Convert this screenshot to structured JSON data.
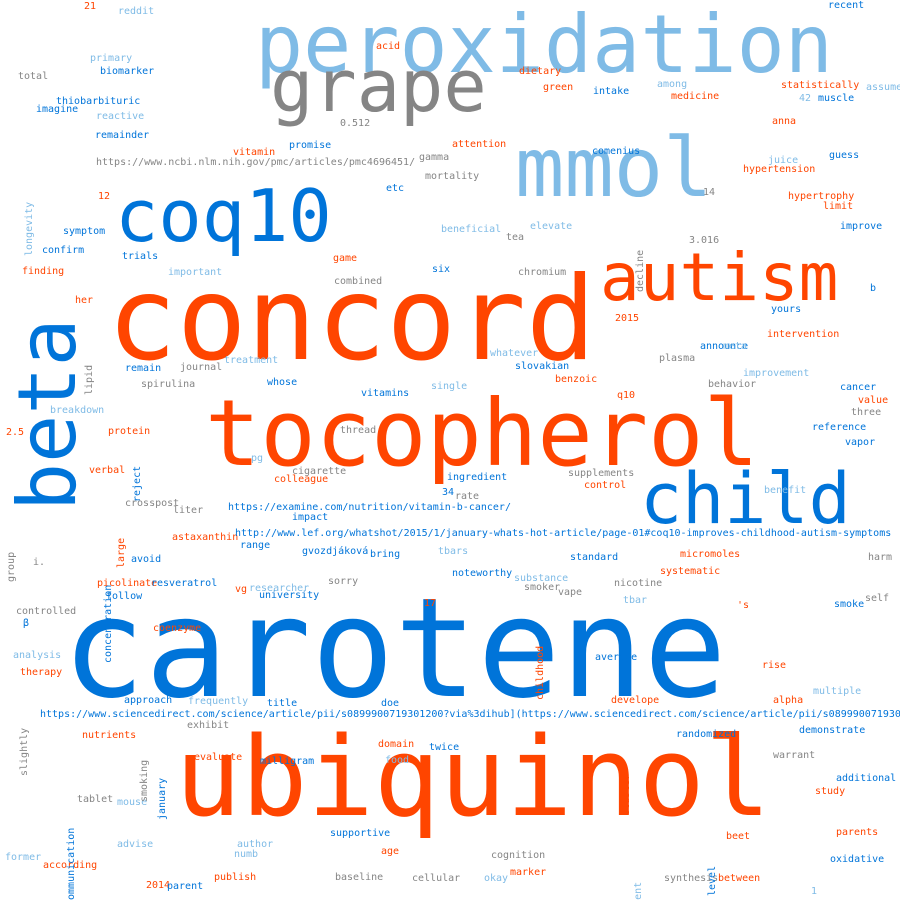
{
  "palette": {
    "orange": "#ff4500",
    "blue": "#0074d9",
    "light_blue": "#7fbbe6",
    "gray": "#858585"
  },
  "words": [
    {
      "text": "carotene",
      "color": "#0074d9"
    },
    {
      "text": "concord",
      "color": "#ff4500"
    },
    {
      "text": "ubiquinol",
      "color": "#ff4500"
    },
    {
      "text": "tocopherol",
      "color": "#ff4500"
    },
    {
      "text": "peroxidation",
      "color": "#7fbbe6"
    },
    {
      "text": "mmol",
      "color": "#7fbbe6"
    },
    {
      "text": "coq10",
      "color": "#0074d9"
    },
    {
      "text": "grape",
      "color": "#858585"
    },
    {
      "text": "autism",
      "color": "#ff4500"
    },
    {
      "text": "beta",
      "color": "#0074d9"
    },
    {
      "text": "child",
      "color": "#0074d9"
    },
    {
      "text": "21",
      "color": "#ff4500"
    },
    {
      "text": "reddit",
      "color": "#7fbbe6"
    },
    {
      "text": "recent",
      "color": "#0074d9"
    },
    {
      "text": "acid",
      "color": "#ff4500"
    },
    {
      "text": "primary",
      "color": "#7fbbe6"
    },
    {
      "text": "total",
      "color": "#858585"
    },
    {
      "text": "biomarker",
      "color": "#0074d9"
    },
    {
      "text": "dietary",
      "color": "#ff4500"
    },
    {
      "text": "among",
      "color": "#7fbbe6"
    },
    {
      "text": "statistically",
      "color": "#ff4500"
    },
    {
      "text": "assume",
      "color": "#7fbbe6"
    },
    {
      "text": "green",
      "color": "#ff4500"
    },
    {
      "text": "intake",
      "color": "#0074d9"
    },
    {
      "text": "medicine",
      "color": "#ff4500"
    },
    {
      "text": "42",
      "color": "#7fbbe6"
    },
    {
      "text": "muscle",
      "color": "#0074d9"
    },
    {
      "text": "thiobarbituric",
      "color": "#0074d9"
    },
    {
      "text": "imagine",
      "color": "#0074d9"
    },
    {
      "text": "reactive",
      "color": "#7fbbe6"
    },
    {
      "text": "0.512",
      "color": "#858585"
    },
    {
      "text": "anna",
      "color": "#ff4500"
    },
    {
      "text": "remainder",
      "color": "#0074d9"
    },
    {
      "text": "promise",
      "color": "#0074d9"
    },
    {
      "text": "attention",
      "color": "#ff4500"
    },
    {
      "text": "comenius",
      "color": "#0074d9"
    },
    {
      "text": "vitamin",
      "color": "#ff4500"
    },
    {
      "text": "gamma",
      "color": "#858585"
    },
    {
      "text": "guess",
      "color": "#0074d9"
    },
    {
      "text": "juice",
      "color": "#7fbbe6"
    },
    {
      "text": "https://www.ncbi.nlm.nih.gov/pmc/articles/pmc4696451/",
      "color": "#858585"
    },
    {
      "text": "hypertension",
      "color": "#ff4500"
    },
    {
      "text": "mortality",
      "color": "#858585"
    },
    {
      "text": "etc",
      "color": "#0074d9"
    },
    {
      "text": "12",
      "color": "#ff4500"
    },
    {
      "text": "14",
      "color": "#858585"
    },
    {
      "text": "hypertrophy",
      "color": "#ff4500"
    },
    {
      "text": "limit",
      "color": "#ff4500"
    },
    {
      "text": "beneficial",
      "color": "#7fbbe6"
    },
    {
      "text": "elevate",
      "color": "#7fbbe6"
    },
    {
      "text": "symptom",
      "color": "#0074d9"
    },
    {
      "text": "tea",
      "color": "#858585"
    },
    {
      "text": "3.016",
      "color": "#858585"
    },
    {
      "text": "improve",
      "color": "#0074d9"
    },
    {
      "text": "confirm",
      "color": "#0074d9"
    },
    {
      "text": "trials",
      "color": "#0074d9"
    },
    {
      "text": "game",
      "color": "#ff4500"
    },
    {
      "text": "finding",
      "color": "#ff4500"
    },
    {
      "text": "important",
      "color": "#7fbbe6"
    },
    {
      "text": "six",
      "color": "#0074d9"
    },
    {
      "text": "chromium",
      "color": "#858585"
    },
    {
      "text": "combined",
      "color": "#858585"
    },
    {
      "text": "b",
      "color": "#0074d9"
    },
    {
      "text": "her",
      "color": "#ff4500"
    },
    {
      "text": "yours",
      "color": "#0074d9"
    },
    {
      "text": "2015",
      "color": "#ff4500"
    },
    {
      "text": "intervention",
      "color": "#ff4500"
    },
    {
      "text": "announce",
      "color": "#0074d9"
    },
    {
      "text": "meta",
      "color": "#7fbbe6"
    },
    {
      "text": "whatever",
      "color": "#7fbbe6"
    },
    {
      "text": "plasma",
      "color": "#858585"
    },
    {
      "text": "treatment",
      "color": "#7fbbe6"
    },
    {
      "text": "journal",
      "color": "#858585"
    },
    {
      "text": "slovakian",
      "color": "#0074d9"
    },
    {
      "text": "remain",
      "color": "#0074d9"
    },
    {
      "text": "improvement",
      "color": "#7fbbe6"
    },
    {
      "text": "spirulina",
      "color": "#858585"
    },
    {
      "text": "whose",
      "color": "#0074d9"
    },
    {
      "text": "single",
      "color": "#7fbbe6"
    },
    {
      "text": "benzoic",
      "color": "#ff4500"
    },
    {
      "text": "behavior",
      "color": "#858585"
    },
    {
      "text": "cancer",
      "color": "#0074d9"
    },
    {
      "text": "vitamins",
      "color": "#0074d9"
    },
    {
      "text": "q10",
      "color": "#ff4500"
    },
    {
      "text": "value",
      "color": "#ff4500"
    },
    {
      "text": "breakdown",
      "color": "#7fbbe6"
    },
    {
      "text": "three",
      "color": "#858585"
    },
    {
      "text": "protein",
      "color": "#ff4500"
    },
    {
      "text": "thread",
      "color": "#858585"
    },
    {
      "text": "reference",
      "color": "#0074d9"
    },
    {
      "text": "vapor",
      "color": "#0074d9"
    },
    {
      "text": "2.5",
      "color": "#ff4500"
    },
    {
      "text": "pg",
      "color": "#7fbbe6"
    },
    {
      "text": "verbal",
      "color": "#ff4500"
    },
    {
      "text": "cigarette",
      "color": "#858585"
    },
    {
      "text": "ingredient",
      "color": "#0074d9"
    },
    {
      "text": "supplements",
      "color": "#858585"
    },
    {
      "text": "colleague",
      "color": "#ff4500"
    },
    {
      "text": "control",
      "color": "#ff4500"
    },
    {
      "text": "benefit",
      "color": "#7fbbe6"
    },
    {
      "text": "34",
      "color": "#0074d9"
    },
    {
      "text": "rate",
      "color": "#858585"
    },
    {
      "text": "crosspost",
      "color": "#858585"
    },
    {
      "text": "liter",
      "color": "#858585"
    },
    {
      "text": "https://examine.com/nutrition/vitamin-b-cancer/",
      "color": "#0074d9"
    },
    {
      "text": "impact",
      "color": "#0074d9"
    },
    {
      "text": "astaxanthin",
      "color": "#ff4500"
    },
    {
      "text": "http://www.lef.org/whatshot/2015/1/january-whats-hot-article/page-01#coq10-improves-childhood-autism-symptoms",
      "color": "#0074d9"
    },
    {
      "text": "range",
      "color": "#0074d9"
    },
    {
      "text": "gvozdjáková",
      "color": "#0074d9"
    },
    {
      "text": "tbars",
      "color": "#7fbbe6"
    },
    {
      "text": "bring",
      "color": "#0074d9"
    },
    {
      "text": "standard",
      "color": "#0074d9"
    },
    {
      "text": "micromoles",
      "color": "#ff4500"
    },
    {
      "text": "harm",
      "color": "#858585"
    },
    {
      "text": "avoid",
      "color": "#0074d9"
    },
    {
      "text": "i.",
      "color": "#858585"
    },
    {
      "text": "systematic",
      "color": "#ff4500"
    },
    {
      "text": "noteworthy",
      "color": "#0074d9"
    },
    {
      "text": "substance",
      "color": "#7fbbe6"
    },
    {
      "text": "nicotine",
      "color": "#858585"
    },
    {
      "text": "picolinate",
      "color": "#ff4500"
    },
    {
      "text": "resveratrol",
      "color": "#0074d9"
    },
    {
      "text": "vg",
      "color": "#ff4500"
    },
    {
      "text": "researcher",
      "color": "#7fbbe6"
    },
    {
      "text": "sorry",
      "color": "#858585"
    },
    {
      "text": "smoker",
      "color": "#858585"
    },
    {
      "text": "vape",
      "color": "#858585"
    },
    {
      "text": "follow",
      "color": "#0074d9"
    },
    {
      "text": "university",
      "color": "#0074d9"
    },
    {
      "text": "tbar",
      "color": "#7fbbe6"
    },
    {
      "text": "self",
      "color": "#858585"
    },
    {
      "text": "controlled",
      "color": "#858585"
    },
    {
      "text": "17",
      "color": "#ff4500"
    },
    {
      "text": "'s",
      "color": "#ff4500"
    },
    {
      "text": "smoke",
      "color": "#0074d9"
    },
    {
      "text": "β",
      "color": "#0074d9"
    },
    {
      "text": "coenzyme",
      "color": "#ff4500"
    },
    {
      "text": "analysis",
      "color": "#7fbbe6"
    },
    {
      "text": "average",
      "color": "#0074d9"
    },
    {
      "text": "therapy",
      "color": "#ff4500"
    },
    {
      "text": "rise",
      "color": "#ff4500"
    },
    {
      "text": "approach",
      "color": "#0074d9"
    },
    {
      "text": "frequently",
      "color": "#7fbbe6"
    },
    {
      "text": "doe",
      "color": "#0074d9"
    },
    {
      "text": "develope",
      "color": "#ff4500"
    },
    {
      "text": "alpha",
      "color": "#ff4500"
    },
    {
      "text": "multiple",
      "color": "#7fbbe6"
    },
    {
      "text": "title",
      "color": "#0074d9"
    },
    {
      "text": "https://www.sciencedirect.com/science/article/pii/s0899900719301200?via%3dihub](https://www.sciencedirect.com/science/article/pii/s0899900719301200?via%3dihub)",
      "color": "#0074d9"
    },
    {
      "text": "exhibit",
      "color": "#858585"
    },
    {
      "text": "nutrients",
      "color": "#ff4500"
    },
    {
      "text": "randomized",
      "color": "#0074d9"
    },
    {
      "text": "demonstrate",
      "color": "#0074d9"
    },
    {
      "text": "domain",
      "color": "#ff4500"
    },
    {
      "text": "twice",
      "color": "#0074d9"
    },
    {
      "text": "evaluate",
      "color": "#ff4500"
    },
    {
      "text": "milligram",
      "color": "#0074d9"
    },
    {
      "text": "food",
      "color": "#7fbbe6"
    },
    {
      "text": "warrant",
      "color": "#858585"
    },
    {
      "text": "additional",
      "color": "#0074d9"
    },
    {
      "text": "study",
      "color": "#ff4500"
    },
    {
      "text": "tablet",
      "color": "#858585"
    },
    {
      "text": "mouse",
      "color": "#7fbbe6"
    },
    {
      "text": "supportive",
      "color": "#0074d9"
    },
    {
      "text": "beet",
      "color": "#ff4500"
    },
    {
      "text": "parents",
      "color": "#ff4500"
    },
    {
      "text": "advise",
      "color": "#7fbbe6"
    },
    {
      "text": "author",
      "color": "#7fbbe6"
    },
    {
      "text": "age",
      "color": "#ff4500"
    },
    {
      "text": "numb",
      "color": "#7fbbe6"
    },
    {
      "text": "cognition",
      "color": "#858585"
    },
    {
      "text": "oxidative",
      "color": "#0074d9"
    },
    {
      "text": "former",
      "color": "#7fbbe6"
    },
    {
      "text": "according",
      "color": "#ff4500"
    },
    {
      "text": "marker",
      "color": "#ff4500"
    },
    {
      "text": "2014",
      "color": "#ff4500"
    },
    {
      "text": "parent",
      "color": "#0074d9"
    },
    {
      "text": "publish",
      "color": "#ff4500"
    },
    {
      "text": "baseline",
      "color": "#858585"
    },
    {
      "text": "cellular",
      "color": "#858585"
    },
    {
      "text": "okay",
      "color": "#7fbbe6"
    },
    {
      "text": "synthesis",
      "color": "#858585"
    },
    {
      "text": "between",
      "color": "#ff4500"
    },
    {
      "text": "1",
      "color": "#7fbbe6"
    },
    {
      "text": "longevity",
      "color": "#7fbbe6"
    },
    {
      "text": "decline",
      "color": "#858585"
    },
    {
      "text": "lipid",
      "color": "#858585"
    },
    {
      "text": "reject",
      "color": "#0074d9"
    },
    {
      "text": "concentration",
      "color": "#0074d9"
    },
    {
      "text": "large",
      "color": "#ff4500"
    },
    {
      "text": "group",
      "color": "#858585"
    },
    {
      "text": "childhood",
      "color": "#ff4500"
    },
    {
      "text": "slightly",
      "color": "#858585"
    },
    {
      "text": "smoking",
      "color": "#858585"
    },
    {
      "text": "january",
      "color": "#0074d9"
    },
    {
      "text": "communication",
      "color": "#0074d9"
    },
    {
      "text": "cluster",
      "color": "#ff4500"
    },
    {
      "text": "patient",
      "color": "#7fbbe6"
    },
    {
      "text": "level",
      "color": "#0074d9"
    }
  ]
}
